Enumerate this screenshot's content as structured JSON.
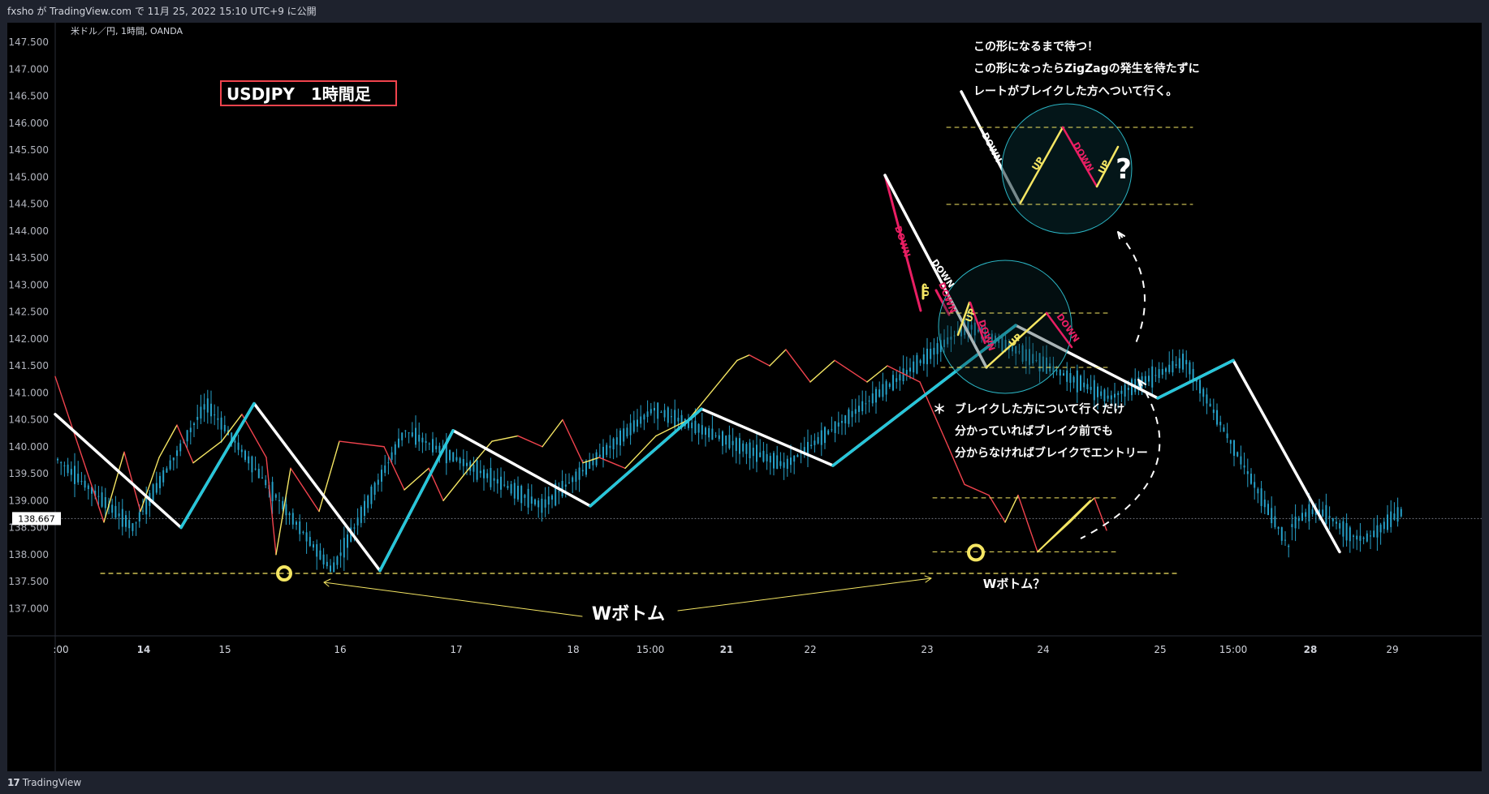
{
  "header": {
    "publish_info": "fxsho が TradingView.com で 11月 25, 2022 15:10 UTC+9 に公開"
  },
  "footer": {
    "brand": "TradingView",
    "brand_mark": "17"
  },
  "chart_data": {
    "type": "candlestick",
    "symbol_info": "米ドル／円, 1時間, OANDA",
    "title_box": "USDJPY　1時間足",
    "current_price_label": "138.667",
    "current_price": 138.667,
    "y_ticks": [
      "147.500",
      "147.000",
      "146.500",
      "146.000",
      "145.500",
      "145.000",
      "144.500",
      "144.000",
      "143.500",
      "143.000",
      "142.500",
      "142.000",
      "141.500",
      "141.000",
      "140.500",
      "140.000",
      "139.500",
      "139.000",
      "138.500",
      "138.000",
      "137.500",
      "137.000"
    ],
    "ylim": [
      136.6,
      147.65
    ],
    "x_ticks": [
      {
        "label": ":00",
        "bold": false
      },
      {
        "label": "14",
        "bold": true
      },
      {
        "label": "15",
        "bold": false
      },
      {
        "label": "16",
        "bold": false
      },
      {
        "label": "17",
        "bold": false
      },
      {
        "label": "18",
        "bold": false
      },
      {
        "label": "15:00",
        "bold": false
      },
      {
        "label": "21",
        "bold": true
      },
      {
        "label": "22",
        "bold": false
      },
      {
        "label": "23",
        "bold": false
      },
      {
        "label": "24",
        "bold": false
      },
      {
        "label": "25",
        "bold": false
      },
      {
        "label": "15:00",
        "bold": false
      },
      {
        "label": "28",
        "bold": true
      },
      {
        "label": "29",
        "bold": false
      }
    ],
    "zigzag_white": [
      [
        0,
        140.6
      ],
      [
        1,
        138.5
      ],
      [
        2,
        140.8
      ],
      [
        3,
        139.7
      ],
      [
        4,
        137.7
      ],
      [
        5,
        140.3
      ],
      [
        6,
        138.9
      ],
      [
        7,
        140.7
      ],
      [
        8,
        139.65
      ],
      [
        9,
        142.25
      ],
      [
        10,
        140.9
      ],
      [
        11,
        141.6
      ],
      [
        12,
        138.05
      ]
    ],
    "zigzag_cyan": [
      [
        1,
        138.5
      ],
      [
        2,
        140.8
      ],
      [
        4,
        137.7
      ],
      [
        5,
        140.3
      ],
      [
        6,
        138.9
      ],
      [
        7,
        140.7
      ],
      [
        8,
        139.65
      ],
      [
        9,
        142.25
      ],
      [
        10,
        140.9
      ],
      [
        11,
        141.6
      ]
    ],
    "w_bottom_level": 137.65,
    "w_bottom_label": "Wボトム",
    "w_bottom_question": "Wボトム？",
    "break_box_levels": [
      139.05,
      138.05
    ],
    "notes": {
      "top_line1": "この形になるまで待つ！",
      "top_line2": "この形になったらZigZagの発生を待たずに",
      "top_line3": "レートがブレイクした方へついて行く。",
      "mid_star": "＊",
      "mid_line1": "ブレイクした方について行くだけ",
      "mid_line2": "分かっていればブレイク前でも",
      "mid_line3": "分からなければブレイクでエントリー"
    },
    "pattern_labels": {
      "down": "DOWN",
      "up": "UP",
      "question": "?"
    },
    "colors": {
      "background": "#000000",
      "white_zigzag": "#ffffff",
      "cyan_zigzag": "#26c6da",
      "yellow": "#f5e663",
      "red": "#f0434d",
      "pink": "#e91e63",
      "candle": "#26a0c8",
      "circle": "#2bb5c4",
      "title_border": "#f0434d"
    }
  }
}
